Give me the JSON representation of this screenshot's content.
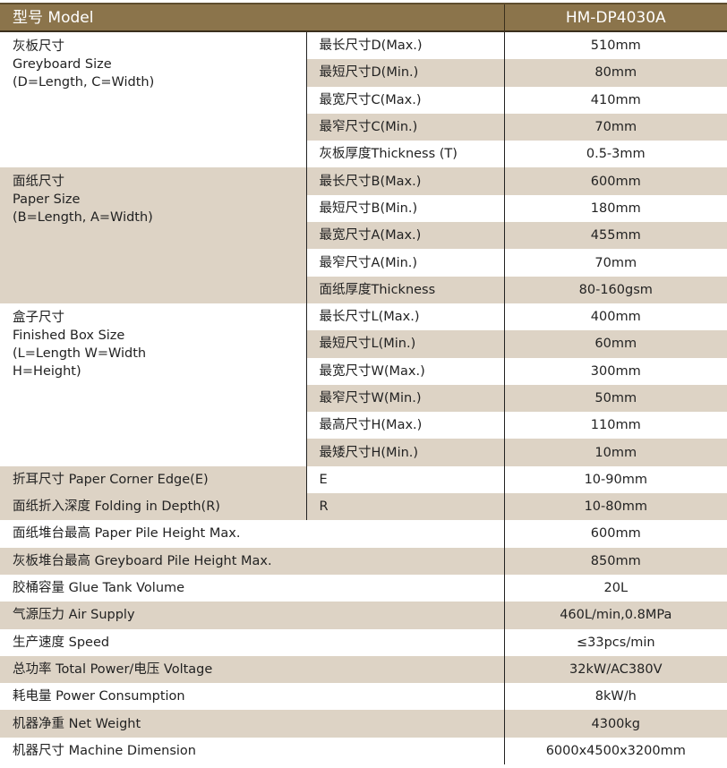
{
  "colors": {
    "header": "#8b744b",
    "stripe": "#ddd3c5"
  },
  "header": {
    "label": "型号 Model",
    "value": "HM-DP4030A"
  },
  "groups": [
    {
      "label": [
        "灰板尺寸",
        "Greyboard Size",
        "(D=Length, C=Width)"
      ],
      "shaded": false,
      "rows": [
        {
          "param": "最长尺寸D(Max.)",
          "value": "510mm"
        },
        {
          "param": "最短尺寸D(Min.)",
          "value": "80mm"
        },
        {
          "param": "最宽尺寸C(Max.)",
          "value": "410mm"
        },
        {
          "param": "最窄尺寸C(Min.)",
          "value": "70mm"
        },
        {
          "param": "灰板厚度Thickness (T)",
          "value": "0.5-3mm"
        }
      ]
    },
    {
      "label": [
        "面纸尺寸",
        "Paper Size",
        "(B=Length, A=Width)"
      ],
      "shaded": true,
      "rows": [
        {
          "param": "最长尺寸B(Max.)",
          "value": "600mm"
        },
        {
          "param": "最短尺寸B(Min.)",
          "value": "180mm"
        },
        {
          "param": "最宽尺寸A(Max.)",
          "value": "455mm"
        },
        {
          "param": "最窄尺寸A(Min.)",
          "value": "70mm"
        },
        {
          "param": "面纸厚度Thickness",
          "value": "80-160gsm"
        }
      ]
    },
    {
      "label": [
        "盒子尺寸",
        "Finished Box Size",
        "(L=Length  W=Width",
        "H=Height)"
      ],
      "shaded": false,
      "rows": [
        {
          "param": "最长尺寸L(Max.)",
          "value": "400mm"
        },
        {
          "param": "最短尺寸L(Min.)",
          "value": "60mm"
        },
        {
          "param": "最宽尺寸W(Max.)",
          "value": "300mm"
        },
        {
          "param": "最窄尺寸W(Min.)",
          "value": "50mm"
        },
        {
          "param": "最高尺寸H(Max.)",
          "value": "110mm"
        },
        {
          "param": "最矮尺寸H(Min.)",
          "value": "10mm"
        }
      ]
    }
  ],
  "three_col_rows": [
    {
      "label": "折耳尺寸 Paper Corner Edge(E)",
      "param": "E",
      "value": "10-90mm"
    },
    {
      "label": "面纸折入深度 Folding in Depth(R)",
      "param": "R",
      "value": "10-80mm"
    }
  ],
  "two_col_rows": [
    {
      "label": "面纸堆台最高 Paper Pile Height Max.",
      "value": "600mm"
    },
    {
      "label": "灰板堆台最高 Greyboard Pile Height Max.",
      "value": "850mm"
    },
    {
      "label": "胶桶容量 Glue Tank Volume",
      "value": "20L"
    },
    {
      "label": "气源压力 Air Supply",
      "value": "460L/min,0.8MPa"
    },
    {
      "label": "生产速度 Speed",
      "value": "≤33pcs/min"
    },
    {
      "label": "总功率 Total Power/电压 Voltage",
      "value": "32kW/AC380V"
    },
    {
      "label": "耗电量 Power Consumption",
      "value": "8kW/h"
    },
    {
      "label": "机器净重 Net Weight",
      "value": "4300kg"
    },
    {
      "label": "机器尺寸 Machine Dimension",
      "value": "6000x4500x3200mm"
    }
  ]
}
